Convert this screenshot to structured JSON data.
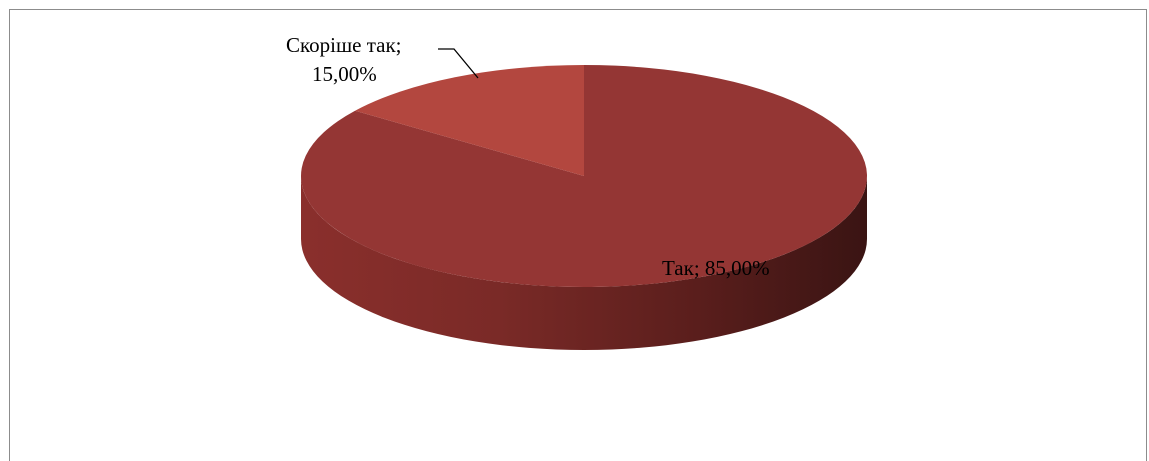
{
  "chart_data": {
    "type": "pie",
    "three_d": true,
    "title": "",
    "legend": "none",
    "slices": [
      {
        "label": "Так",
        "value": 85.0,
        "display": "Так; 85,00%",
        "color": "#943634"
      },
      {
        "label": "Скоріше так",
        "value": 15.0,
        "display_lines": [
          "Скоріше так;",
          "15,00%"
        ],
        "color": "#b3473f"
      }
    ],
    "side_color_light": "#8a2f2c",
    "side_color_dark": "#3a1413"
  }
}
